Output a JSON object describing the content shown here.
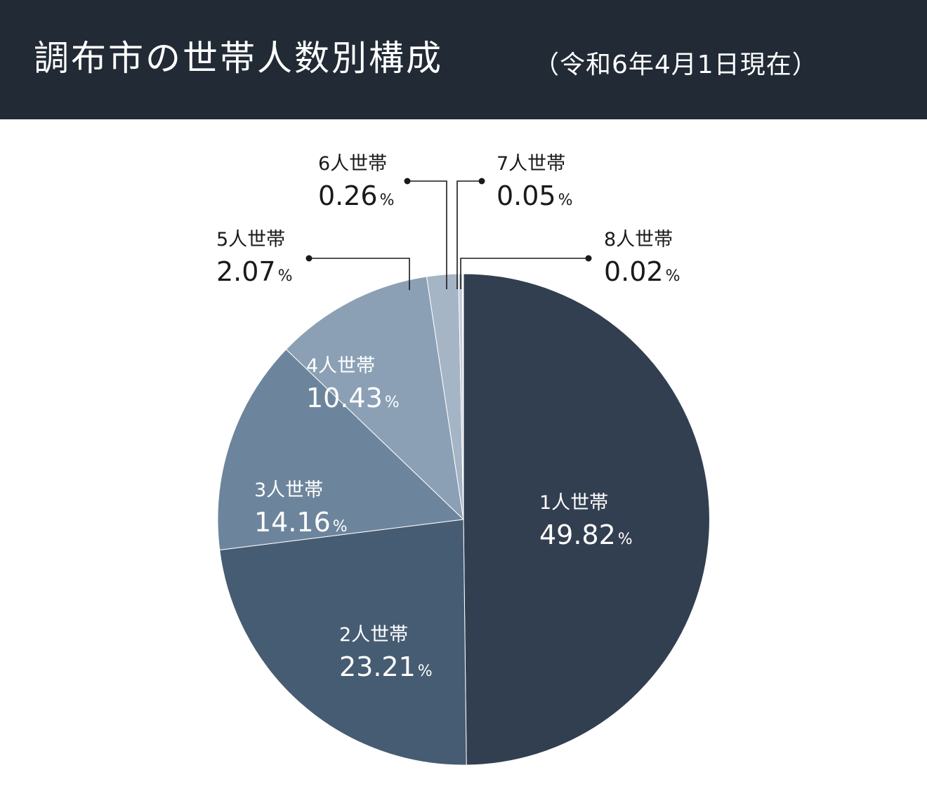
{
  "header": {
    "title": "調布市の世帯人数別構成",
    "subtitle": "（令和6年4月1日現在）"
  },
  "chart_data": {
    "type": "pie",
    "categories": [
      "1人世帯",
      "2人世帯",
      "3人世帯",
      "4人世帯",
      "5人世帯",
      "6人世帯",
      "7人世帯",
      "8人世帯"
    ],
    "values": [
      49.82,
      23.21,
      14.16,
      10.43,
      2.07,
      0.26,
      0.05,
      0.02
    ],
    "value_labels": [
      "49.82",
      "23.21",
      "14.16",
      "10.43",
      "2.07",
      "0.26",
      "0.05",
      "0.02"
    ],
    "unit": "%",
    "colors": [
      "#323f50",
      "#465c73",
      "#6d859c",
      "#8ba0b5",
      "#a5b5c6",
      "#c3ced8",
      "#d6dee5",
      "#e6ebef"
    ],
    "label_colors": [
      "#ffffff",
      "#ffffff",
      "#ffffff",
      "#ffffff",
      "#1a1a1a",
      "#1a1a1a",
      "#1a1a1a",
      "#1a1a1a"
    ],
    "start_angle": "12 o'clock",
    "direction": "clockwise"
  }
}
